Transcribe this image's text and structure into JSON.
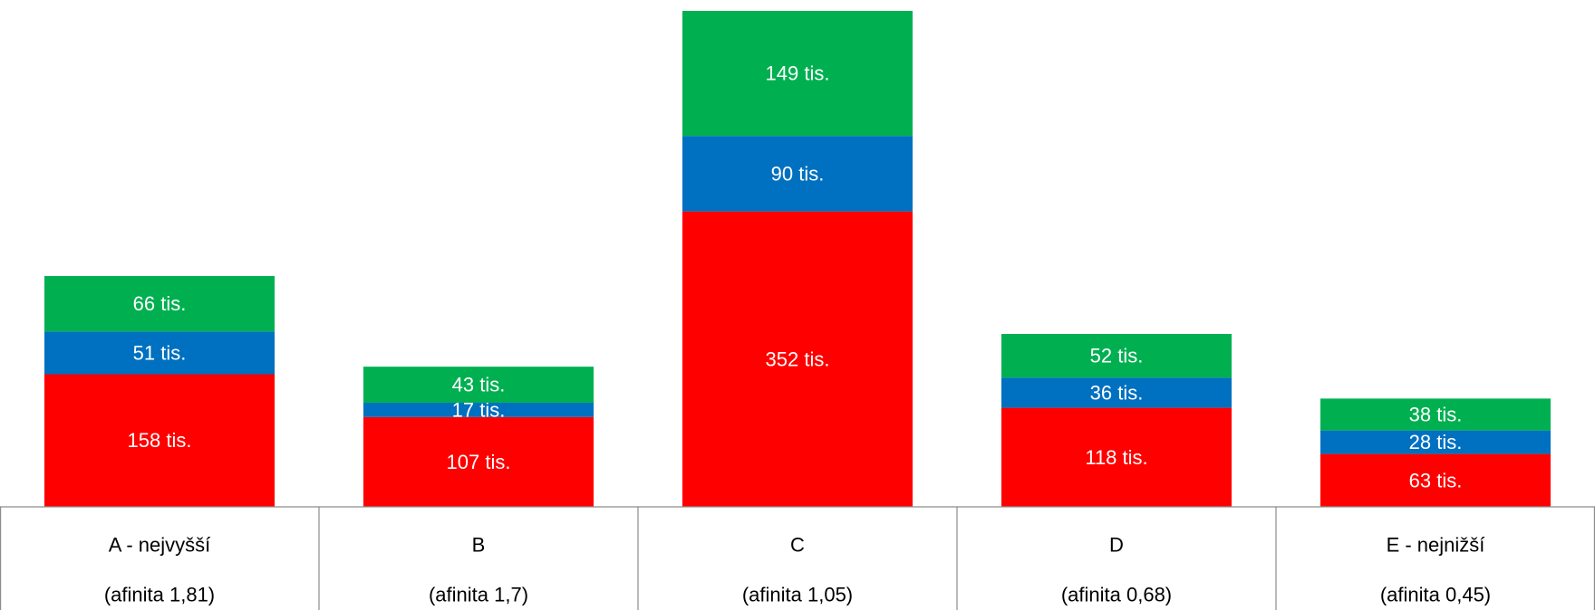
{
  "chart_data": {
    "type": "bar",
    "stacked": true,
    "categories": [
      "A - nejvyšší",
      "B",
      "C",
      "D",
      "E - nejnižší"
    ],
    "category_sublabels": [
      "(afinita 1,81)",
      "(afinita 1,7)",
      "(afinita 1,05)",
      "(afinita 0,68)",
      "(afinita 0,45)"
    ],
    "series": [
      {
        "color": "#ff0000",
        "values": [
          158,
          107,
          352,
          118,
          63
        ],
        "labels": [
          "158 tis.",
          "107 tis.",
          "352 tis.",
          "118 tis.",
          "63 tis."
        ]
      },
      {
        "color": "#0070c0",
        "values": [
          51,
          17,
          90,
          36,
          28
        ],
        "labels": [
          "51 tis.",
          "17 tis.",
          "90 tis.",
          "36 tis.",
          "28 tis."
        ]
      },
      {
        "color": "#00b050",
        "values": [
          66,
          43,
          149,
          52,
          38
        ],
        "labels": [
          "66 tis.",
          "43 tis.",
          "149 tis.",
          "52 tis.",
          "38 tis."
        ]
      }
    ],
    "unit": "tis.",
    "ylim": [
      0,
      600
    ],
    "legend": "none",
    "grid": false,
    "x_axis": "data table"
  }
}
